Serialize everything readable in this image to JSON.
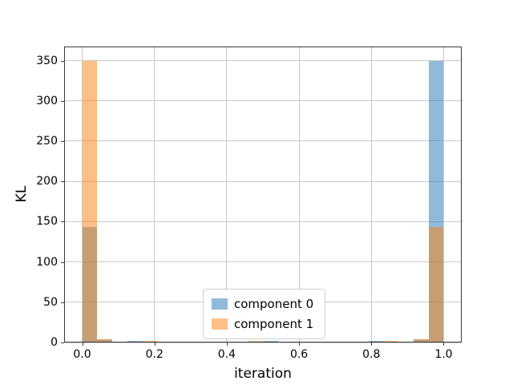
{
  "chart_data": {
    "type": "histogram",
    "title": "",
    "xlabel": "iteration",
    "ylabel": "KL",
    "xlim": [
      -0.05,
      1.05
    ],
    "ylim": [
      0,
      367.5
    ],
    "xticks": {
      "values": [
        0.0,
        0.2,
        0.4,
        0.6,
        0.8,
        1.0
      ],
      "labels": [
        "0.0",
        "0.2",
        "0.4",
        "0.6",
        "0.8",
        "1.0"
      ]
    },
    "yticks": {
      "values": [
        0,
        50,
        100,
        150,
        200,
        250,
        300,
        350
      ],
      "labels": [
        "0",
        "50",
        "100",
        "150",
        "200",
        "250",
        "300",
        "350"
      ]
    },
    "grid": true,
    "grid_color": "#c9c9c9",
    "spine_color": "#3b3b3b",
    "background": "#ffffff",
    "legend_position": "lower center",
    "bins": {
      "min": 0.0,
      "max": 1.0,
      "count": 24
    },
    "bar_alpha": 0.5,
    "series": [
      {
        "name": "component 0",
        "color": "#1f77b4",
        "values": [
          143,
          4,
          1,
          2,
          0,
          0,
          0,
          1,
          0,
          0,
          0,
          0,
          2,
          0,
          0,
          1,
          1,
          0,
          0,
          1.5,
          0,
          0,
          4,
          350
        ]
      },
      {
        "name": "component 1",
        "color": "#ff7f0e",
        "values": [
          350,
          4,
          0,
          0,
          2,
          0,
          0,
          1,
          1,
          0,
          0,
          2,
          0,
          0,
          0,
          0,
          1,
          0,
          0,
          0,
          1.5,
          1,
          4,
          143
        ]
      }
    ],
    "overlap_color": "#c79c72",
    "peak_value": 350,
    "overlap_peak_value": 143
  }
}
